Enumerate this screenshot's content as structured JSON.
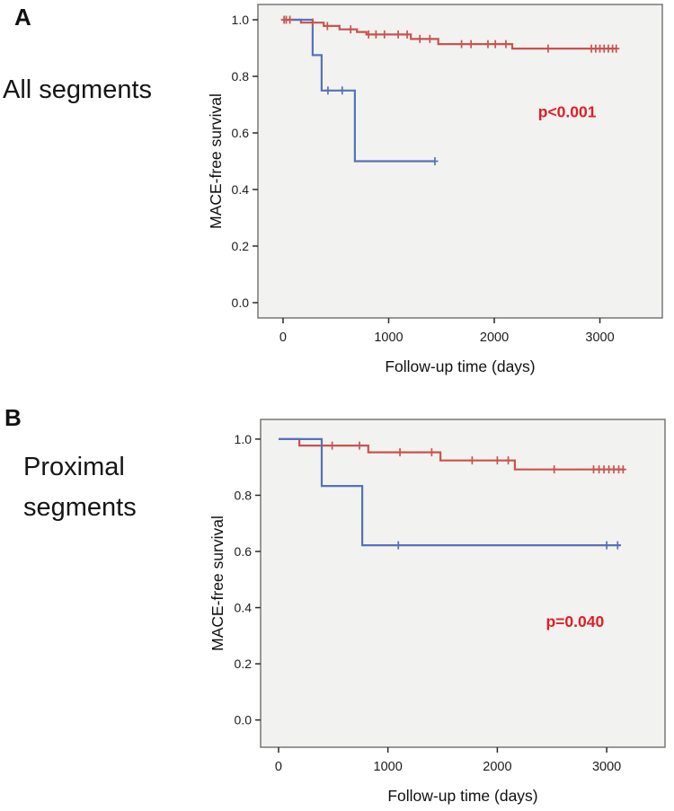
{
  "figure": {
    "panels": [
      {
        "label": "A",
        "caption_lines": [
          "All segments"
        ],
        "p_text": "p<0.001"
      },
      {
        "label": "B",
        "caption_lines": [
          "Proximal",
          "segments"
        ],
        "p_text": "p=0.040"
      }
    ]
  },
  "colors": {
    "red_line": "#c9534e",
    "blue_line": "#5572b9",
    "p_text": "#e01e25",
    "plot_bg": "#f2f2f0",
    "plot_border": "#6e6e6e",
    "axis_text": "#1c1c1c",
    "tick_stroke": "#2b2b2b"
  },
  "chart_data": [
    {
      "type": "line",
      "subtype": "kaplan-meier-step",
      "panel": "A",
      "title": "All segments",
      "xlabel": "Follow-up time (days)",
      "ylabel": "MACE-free survival",
      "xticks": [
        0,
        1000,
        2000,
        3000
      ],
      "yticks": [
        0.0,
        0.2,
        0.4,
        0.6,
        0.8,
        1.0
      ],
      "xlim": [
        -238,
        3591
      ],
      "ylim": [
        -0.054,
        1.054
      ],
      "grid": false,
      "legend": null,
      "annotation": {
        "text": "p<0.001",
        "x": 2690,
        "y": 0.675
      },
      "series": [
        {
          "name": "red-group",
          "color_key": "red_line",
          "steps": [
            [
              0,
              1.0
            ],
            [
              170,
              0.99
            ],
            [
              385,
              0.978
            ],
            [
              535,
              0.966
            ],
            [
              700,
              0.957
            ],
            [
              790,
              0.948
            ],
            [
              1210,
              0.932
            ],
            [
              1470,
              0.914
            ],
            [
              2170,
              0.898
            ]
          ],
          "end_day": 3160,
          "censors": [
            [
              10,
              1.0
            ],
            [
              30,
              1.0
            ],
            [
              65,
              1.0
            ],
            [
              280,
              0.99
            ],
            [
              420,
              0.978
            ],
            [
              640,
              0.966
            ],
            [
              810,
              0.948
            ],
            [
              880,
              0.948
            ],
            [
              960,
              0.948
            ],
            [
              1090,
              0.948
            ],
            [
              1175,
              0.948
            ],
            [
              1295,
              0.932
            ],
            [
              1390,
              0.932
            ],
            [
              1690,
              0.914
            ],
            [
              1780,
              0.914
            ],
            [
              1940,
              0.914
            ],
            [
              2010,
              0.914
            ],
            [
              2110,
              0.914
            ],
            [
              2510,
              0.898
            ],
            [
              2920,
              0.898
            ],
            [
              2960,
              0.898
            ],
            [
              3000,
              0.898
            ],
            [
              3040,
              0.898
            ],
            [
              3080,
              0.898
            ],
            [
              3120,
              0.898
            ],
            [
              3155,
              0.898
            ]
          ]
        },
        {
          "name": "blue-group",
          "color_key": "blue_line",
          "steps": [
            [
              0,
              1.0
            ],
            [
              280,
              0.875
            ],
            [
              365,
              0.75
            ],
            [
              680,
              0.5
            ]
          ],
          "end_day": 1438,
          "censors": [
            [
              425,
              0.75
            ],
            [
              560,
              0.75
            ],
            [
              1438,
              0.5
            ]
          ]
        }
      ]
    },
    {
      "type": "line",
      "subtype": "kaplan-meier-step",
      "panel": "B",
      "title": "Proximal segments",
      "xlabel": "Follow-up time (days)",
      "ylabel": "MACE-free survival",
      "xticks": [
        0,
        1000,
        2000,
        3000
      ],
      "yticks": [
        0.0,
        0.2,
        0.4,
        0.6,
        0.8,
        1.0
      ],
      "xlim": [
        -164,
        3533
      ],
      "ylim": [
        -0.097,
        1.07
      ],
      "grid": false,
      "legend": null,
      "annotation": {
        "text": "p=0.040",
        "x": 2710,
        "y": 0.35
      },
      "series": [
        {
          "name": "red-group",
          "color_key": "red_line",
          "steps": [
            [
              0,
              1.0
            ],
            [
              190,
              0.977
            ],
            [
              820,
              0.953
            ],
            [
              1480,
              0.924
            ],
            [
              2160,
              0.892
            ]
          ],
          "end_day": 3165,
          "censors": [
            [
              490,
              0.977
            ],
            [
              740,
              0.977
            ],
            [
              1110,
              0.953
            ],
            [
              1400,
              0.953
            ],
            [
              1770,
              0.924
            ],
            [
              2000,
              0.924
            ],
            [
              2100,
              0.924
            ],
            [
              2520,
              0.892
            ],
            [
              2880,
              0.892
            ],
            [
              2930,
              0.892
            ],
            [
              2975,
              0.892
            ],
            [
              3020,
              0.892
            ],
            [
              3065,
              0.892
            ],
            [
              3110,
              0.892
            ],
            [
              3150,
              0.892
            ]
          ]
        },
        {
          "name": "blue-group",
          "color_key": "blue_line",
          "steps": [
            [
              0,
              1.0
            ],
            [
              395,
              0.833
            ],
            [
              765,
              0.622
            ]
          ],
          "end_day": 3130,
          "censors": [
            [
              1095,
              0.622
            ],
            [
              3000,
              0.622
            ],
            [
              3100,
              0.622
            ]
          ]
        }
      ]
    }
  ]
}
